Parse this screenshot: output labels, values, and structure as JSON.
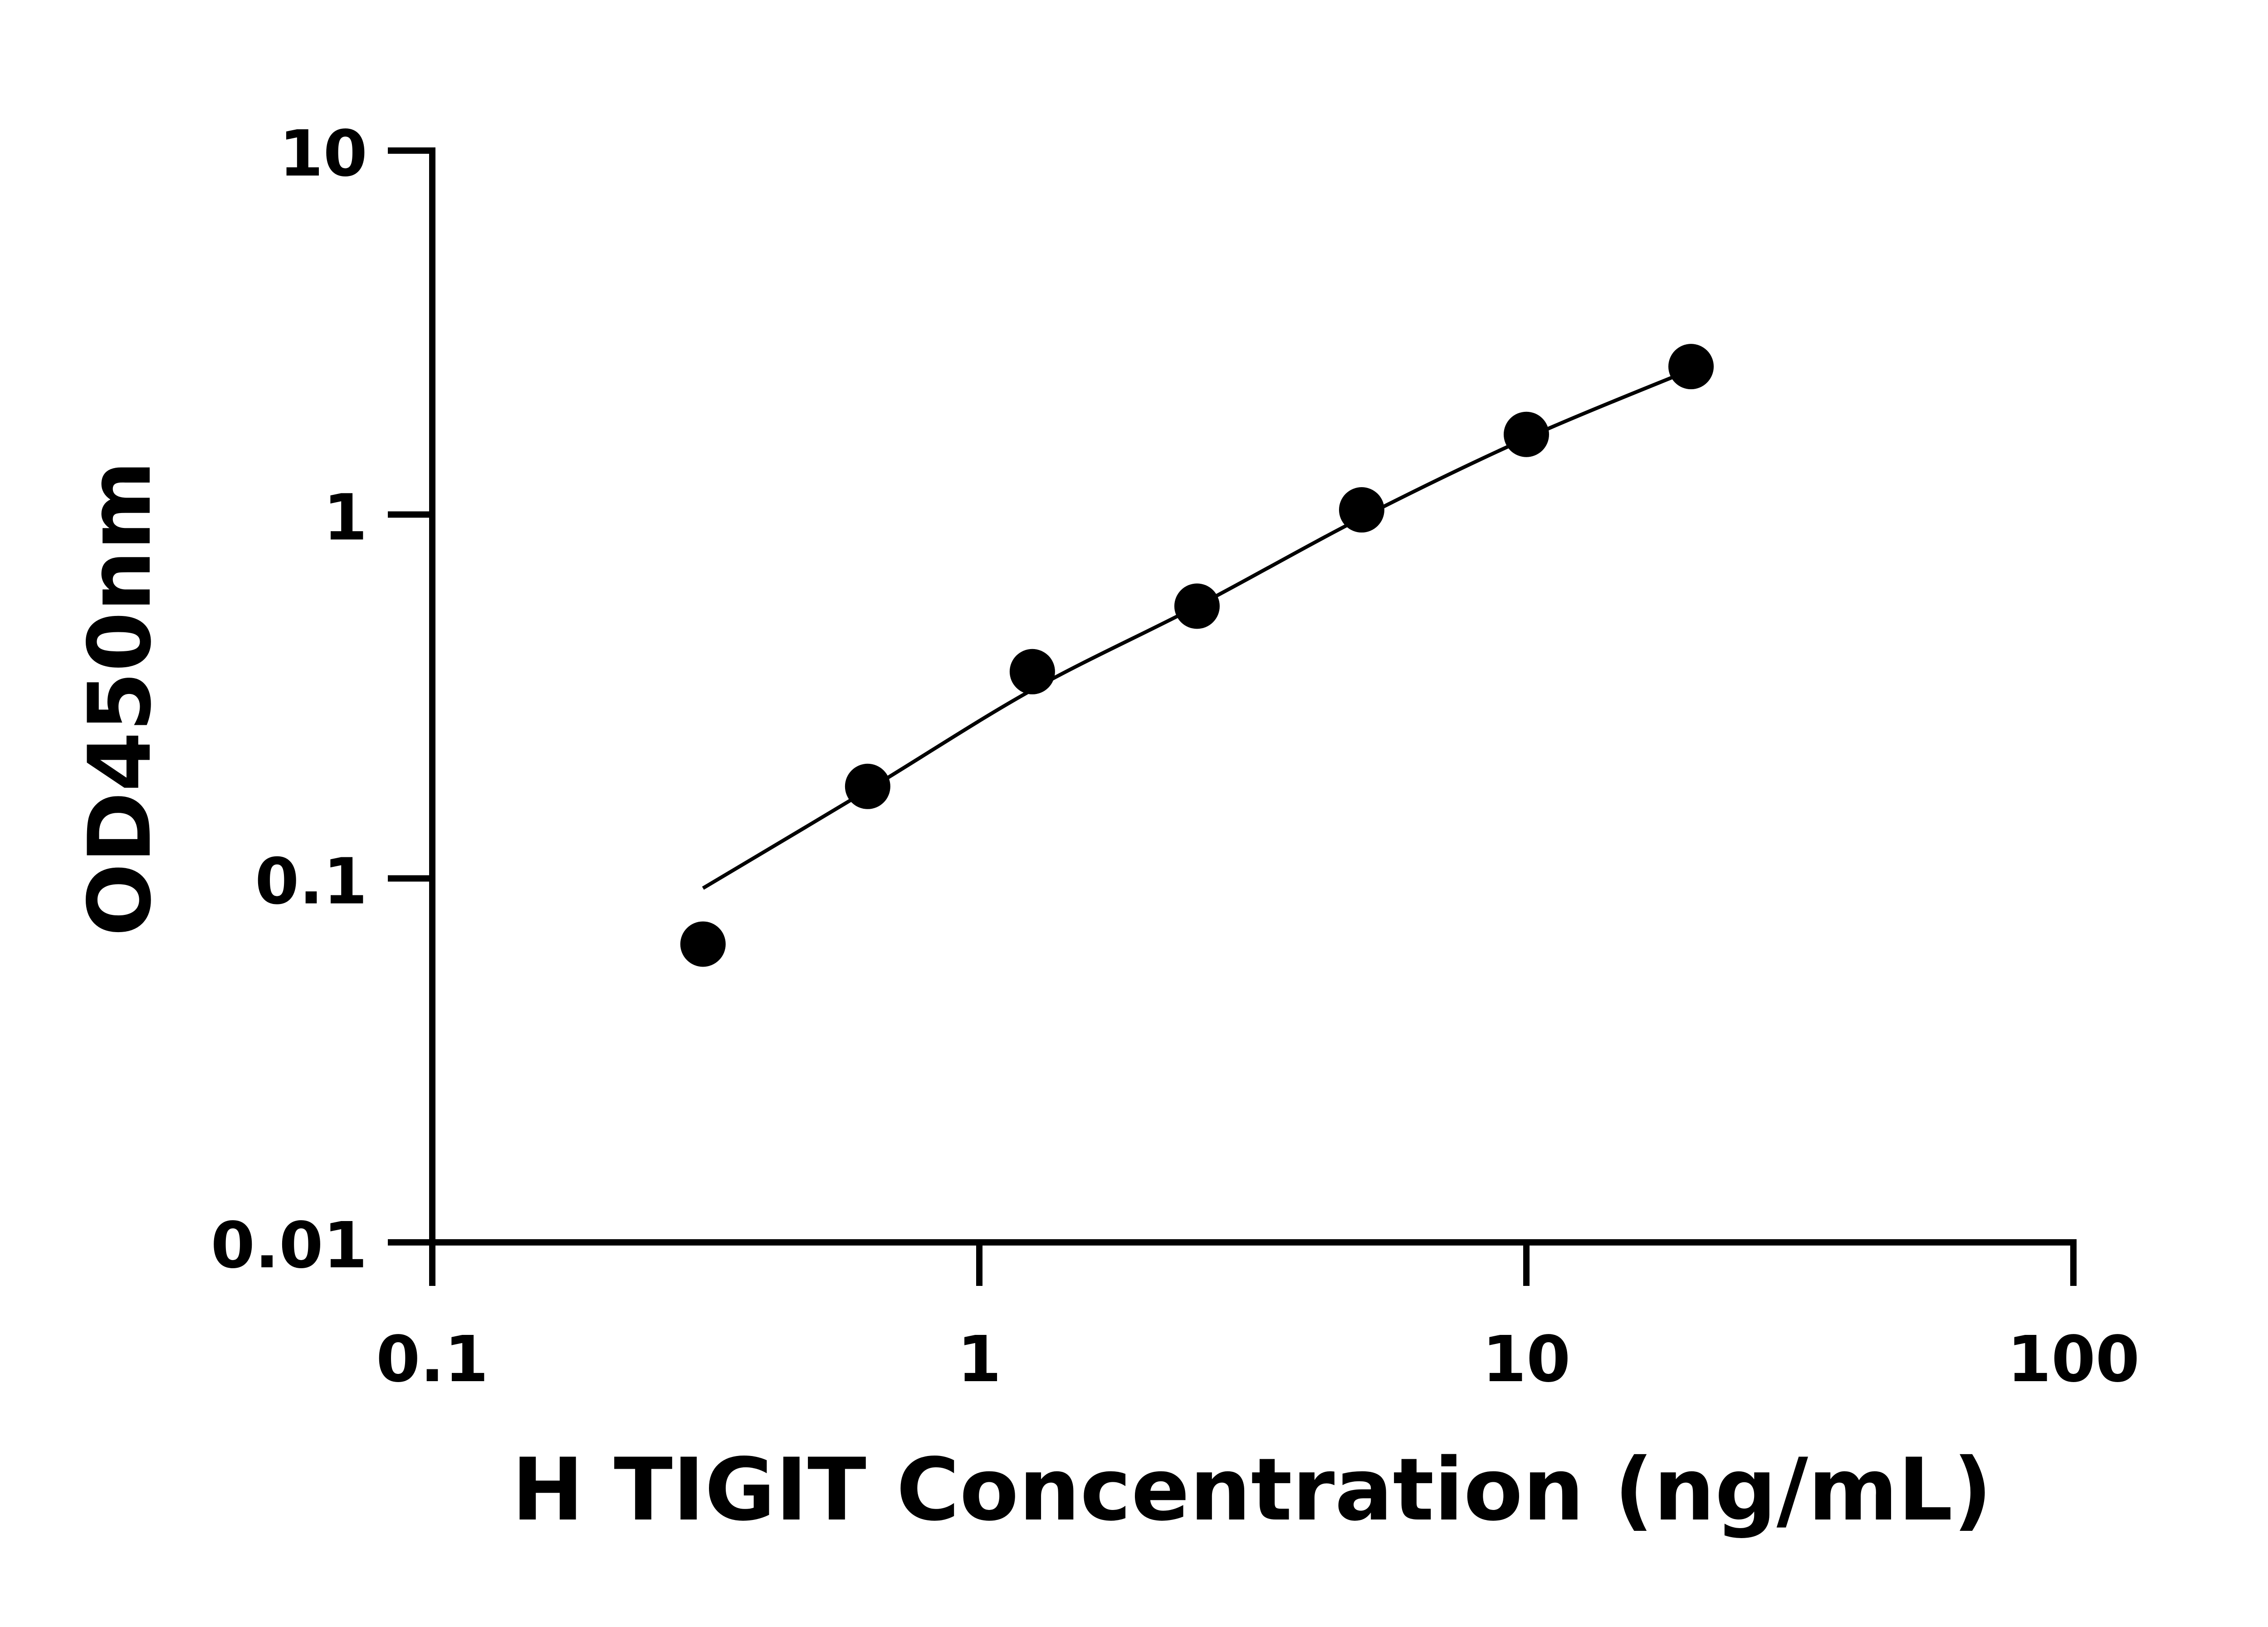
{
  "chart_data": {
    "type": "scatter",
    "title": "",
    "xlabel": "H TIGIT Concentration (ng/mL)",
    "ylabel": "OD450nm",
    "xscale": "log",
    "yscale": "log",
    "xlim": [
      0.1,
      100
    ],
    "ylim": [
      0.01,
      10
    ],
    "xticks": [
      "0.1",
      "1",
      "10",
      "100"
    ],
    "yticks": [
      "0.01",
      "0.1",
      "1",
      "10"
    ],
    "grid": false,
    "legend": "none",
    "points": {
      "x": [
        0.3125,
        0.625,
        1.25,
        2.5,
        5,
        10,
        20
      ],
      "y": [
        0.066,
        0.179,
        0.37,
        0.56,
        1.03,
        1.66,
        2.55
      ]
    },
    "fit_curve": {
      "x": [
        0.3125,
        0.625,
        1.25,
        2.5,
        5,
        10,
        20
      ],
      "y": [
        0.094,
        0.175,
        0.33,
        0.56,
        0.98,
        1.62,
        2.5
      ]
    },
    "colors": {
      "marker": "#000000",
      "line": "#000000"
    }
  }
}
